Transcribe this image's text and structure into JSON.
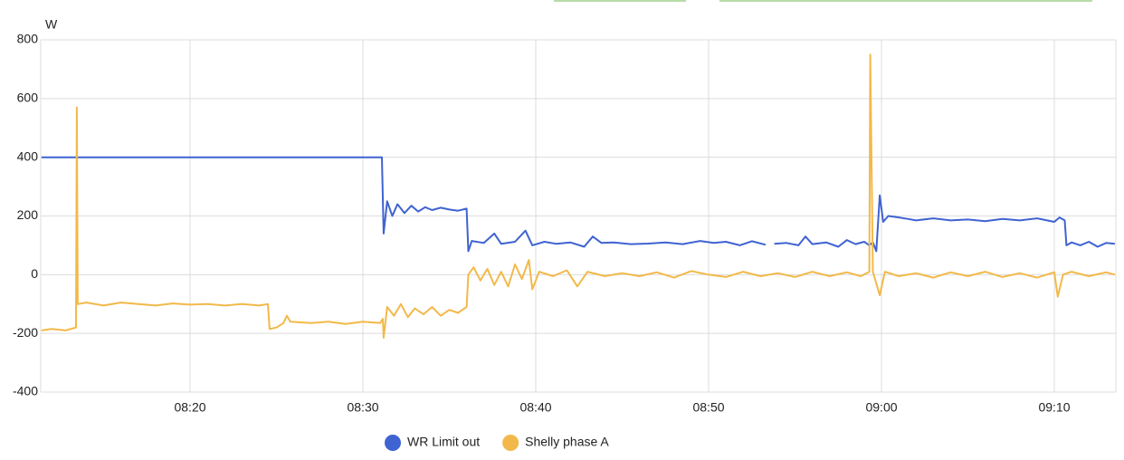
{
  "chart_data": {
    "type": "line",
    "y_label": "W",
    "xlim": [
      11.36,
      73.56
    ],
    "xticks": [
      {
        "value": 20,
        "label": "08:20"
      },
      {
        "value": 30,
        "label": "08:30"
      },
      {
        "value": 40,
        "label": "08:40"
      },
      {
        "value": 50,
        "label": "08:50"
      },
      {
        "value": 60,
        "label": "09:00"
      },
      {
        "value": 70,
        "label": "09:10"
      }
    ],
    "ylim": [
      -400,
      800
    ],
    "yticks": [
      -400,
      -200,
      0,
      200,
      400,
      600,
      800
    ],
    "grid": true,
    "series": [
      {
        "name": "WR Limit out",
        "color": "#3f63d1",
        "x": [
          11.4,
          31.1,
          31.2,
          31.4,
          31.7,
          32,
          32.4,
          32.8,
          33.2,
          33.6,
          34,
          34.5,
          35,
          35.5,
          36,
          36.1,
          36.3,
          37,
          37.6,
          38,
          38.8,
          39.4,
          39.8,
          40.5,
          41.2,
          42,
          42.8,
          43.3,
          43.8,
          44.5,
          45.5,
          46.5,
          47.5,
          48.5,
          49.5,
          50.3,
          51,
          51.8,
          52.5,
          53.3,
          53.4,
          53.8,
          54.5,
          55.2,
          55.6,
          56,
          56.8,
          57.5,
          58,
          58.5,
          59,
          59.3,
          59.5,
          59.7,
          59.9,
          60.1,
          60.4,
          61,
          61.5,
          62,
          63,
          64,
          65,
          66,
          67,
          68,
          69,
          70,
          70.3,
          70.6,
          70.7,
          71,
          71.5,
          72,
          72.5,
          73,
          73.5
        ],
        "values": [
          400,
          400,
          140,
          250,
          200,
          240,
          210,
          235,
          215,
          230,
          220,
          228,
          222,
          218,
          225,
          80,
          115,
          108,
          140,
          105,
          112,
          150,
          100,
          112,
          105,
          110,
          95,
          130,
          108,
          110,
          104,
          106,
          110,
          104,
          115,
          108,
          112,
          100,
          114,
          102,
          null,
          105,
          108,
          100,
          130,
          104,
          110,
          95,
          118,
          104,
          112,
          100,
          110,
          80,
          270,
          180,
          200,
          195,
          190,
          185,
          192,
          185,
          188,
          182,
          190,
          185,
          192,
          180,
          195,
          185,
          100,
          110,
          100,
          112,
          95,
          108,
          105
        ]
      },
      {
        "name": "Shelly phase A",
        "color": "#f2b94a",
        "x": [
          11.4,
          12,
          12.8,
          13.4,
          13.45,
          13.5,
          14,
          15,
          16,
          17,
          18,
          19,
          20,
          21,
          22,
          23,
          24,
          24.5,
          24.6,
          25,
          25.4,
          25.6,
          25.8,
          27,
          28,
          29,
          30,
          31,
          31.15,
          31.2,
          31.4,
          31.8,
          32.2,
          32.6,
          33,
          33.5,
          34,
          34.5,
          35,
          35.5,
          36,
          36.1,
          36.4,
          36.8,
          37.2,
          37.6,
          38,
          38.4,
          38.8,
          39.2,
          39.6,
          39.8,
          40.2,
          41,
          41.8,
          42.4,
          43,
          44,
          45,
          46,
          47,
          48,
          49,
          50,
          51,
          52,
          53,
          54,
          55,
          56,
          57,
          58,
          58.8,
          59.3,
          59.35,
          59.5,
          59.9,
          60.2,
          61,
          62,
          63,
          64,
          65,
          66,
          67,
          68,
          69,
          70,
          70.2,
          70.5,
          71,
          72,
          73,
          73.5
        ],
        "values": [
          -190,
          -185,
          -190,
          -180,
          570,
          -100,
          -95,
          -105,
          -95,
          -100,
          -105,
          -98,
          -102,
          -100,
          -105,
          -100,
          -105,
          -100,
          -185,
          -180,
          -165,
          -140,
          -160,
          -165,
          -160,
          -168,
          -160,
          -165,
          -150,
          -215,
          -110,
          -140,
          -100,
          -145,
          -115,
          -135,
          -110,
          -140,
          -120,
          -130,
          -110,
          0,
          25,
          -20,
          20,
          -35,
          10,
          -40,
          35,
          -15,
          50,
          -50,
          10,
          -5,
          15,
          -40,
          10,
          -5,
          5,
          -5,
          8,
          -10,
          12,
          0,
          -8,
          10,
          -5,
          5,
          -8,
          10,
          -5,
          8,
          -5,
          10,
          750,
          10,
          -70,
          10,
          -5,
          5,
          -10,
          8,
          -5,
          10,
          -8,
          5,
          -10,
          8,
          -75,
          0,
          10,
          -5,
          8,
          0
        ]
      }
    ]
  }
}
